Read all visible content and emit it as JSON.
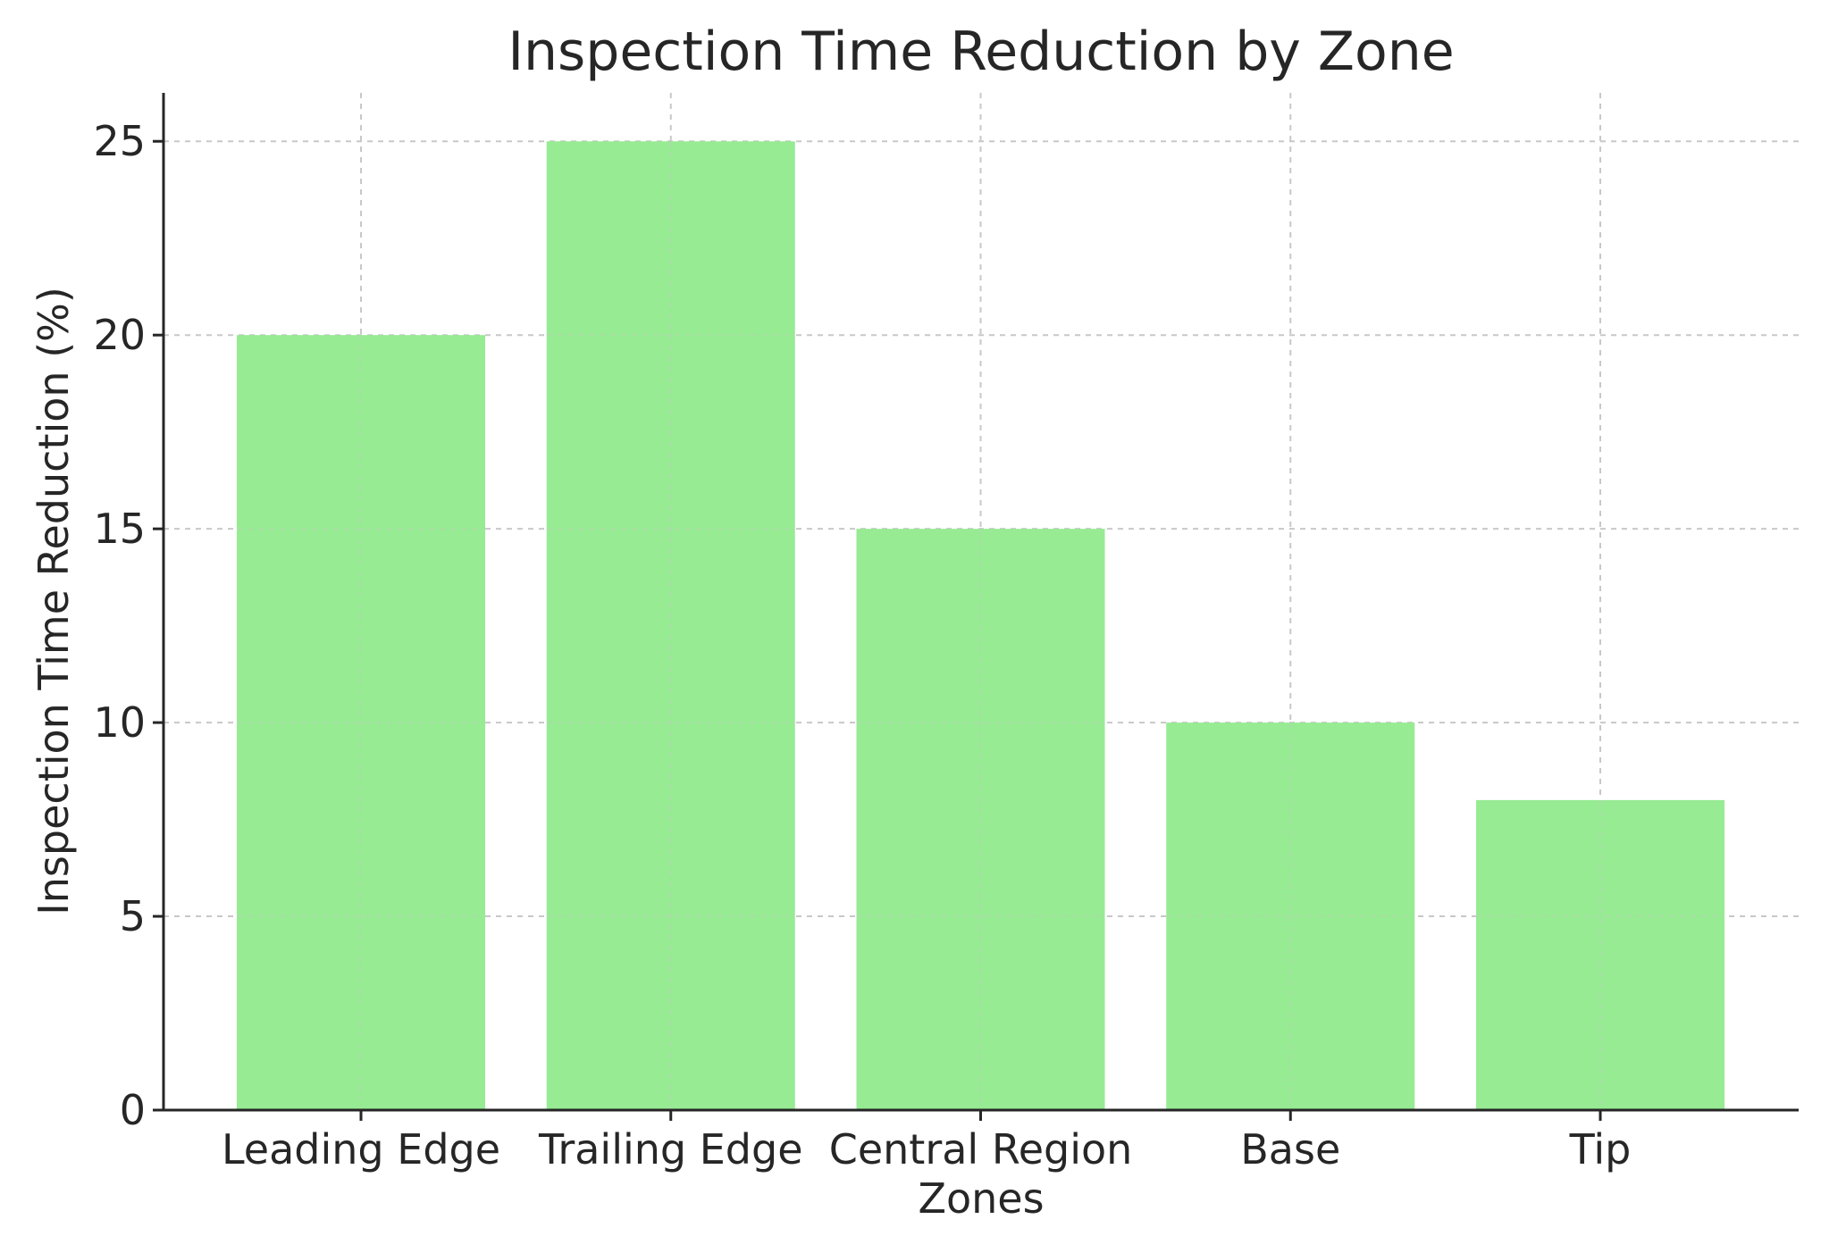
{
  "chart_data": {
    "type": "bar",
    "title": "Inspection Time Reduction by Zone",
    "xlabel": "Zones",
    "ylabel": "Inspection Time Reduction (%)",
    "categories": [
      "Leading Edge",
      "Trailing Edge",
      "Central Region",
      "Base",
      "Tip"
    ],
    "values": [
      20,
      25,
      15,
      10,
      8
    ],
    "ylim": [
      0,
      26.25
    ],
    "yticks": [
      0,
      5,
      10,
      15,
      20,
      25
    ],
    "grid": true,
    "bar_color": "#94ea8f"
  }
}
